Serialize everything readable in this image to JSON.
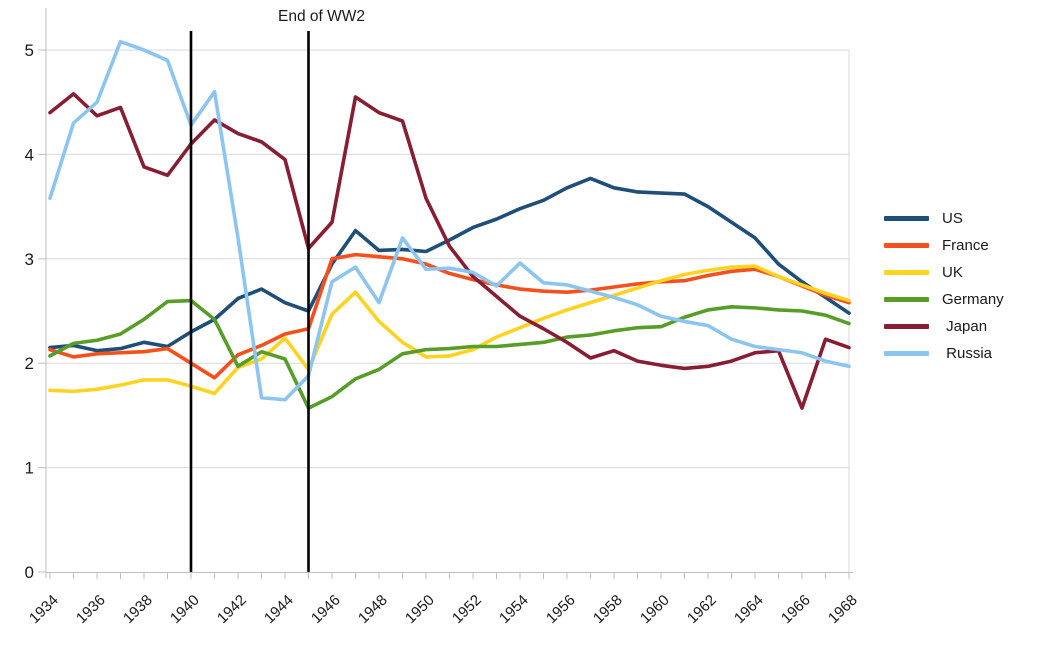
{
  "chart_data": {
    "type": "line",
    "title": "",
    "xlabel": "",
    "ylabel": "",
    "x": [
      1934,
      1935,
      1936,
      1937,
      1938,
      1939,
      1940,
      1941,
      1942,
      1943,
      1944,
      1945,
      1946,
      1947,
      1948,
      1949,
      1950,
      1951,
      1952,
      1953,
      1954,
      1955,
      1956,
      1957,
      1958,
      1959,
      1960,
      1961,
      1962,
      1963,
      1964,
      1965,
      1966,
      1967,
      1968
    ],
    "x_tick_label_step": 2,
    "ylim": [
      0,
      5
    ],
    "y_ticks": [
      0,
      1,
      2,
      3,
      4,
      5
    ],
    "grid": true,
    "legend_position": "right",
    "series": [
      {
        "name": "US",
        "color": "#1f4e79",
        "values": [
          2.15,
          2.17,
          2.12,
          2.14,
          2.2,
          2.16,
          2.3,
          2.42,
          2.62,
          2.71,
          2.58,
          2.5,
          2.95,
          3.27,
          3.08,
          3.09,
          3.07,
          3.18,
          3.3,
          3.38,
          3.48,
          3.56,
          3.68,
          3.77,
          3.68,
          3.64,
          3.63,
          3.62,
          3.5,
          3.35,
          3.2,
          2.95,
          2.78,
          2.63,
          2.48
        ]
      },
      {
        "name": "France",
        "color": "#f4501e",
        "values": [
          2.13,
          2.06,
          2.09,
          2.1,
          2.11,
          2.14,
          2.0,
          1.86,
          2.08,
          2.17,
          2.28,
          2.33,
          3.0,
          3.04,
          3.02,
          3.0,
          2.95,
          2.86,
          2.8,
          2.75,
          2.71,
          2.69,
          2.68,
          2.7,
          2.73,
          2.76,
          2.78,
          2.79,
          2.84,
          2.88,
          2.9,
          2.83,
          2.74,
          2.65,
          2.58
        ]
      },
      {
        "name": "UK",
        "color": "#ffd320",
        "values": [
          1.74,
          1.73,
          1.75,
          1.79,
          1.84,
          1.84,
          1.78,
          1.71,
          1.96,
          2.04,
          2.24,
          1.94,
          2.47,
          2.68,
          2.4,
          2.2,
          2.06,
          2.07,
          2.13,
          2.25,
          2.34,
          2.43,
          2.51,
          2.58,
          2.65,
          2.72,
          2.79,
          2.85,
          2.89,
          2.92,
          2.93,
          2.83,
          2.75,
          2.67,
          2.6
        ]
      },
      {
        "name": "Germany",
        "color": "#579d28",
        "values": [
          2.07,
          2.19,
          2.22,
          2.28,
          2.42,
          2.59,
          2.6,
          2.42,
          1.97,
          2.11,
          2.04,
          1.57,
          1.68,
          1.85,
          1.94,
          2.09,
          2.13,
          2.14,
          2.16,
          2.16,
          2.18,
          2.2,
          2.25,
          2.27,
          2.31,
          2.34,
          2.35,
          2.44,
          2.51,
          2.54,
          2.53,
          2.51,
          2.5,
          2.46,
          2.38
        ]
      },
      {
        "name": " Japan",
        "color": "#871e33",
        "values": [
          4.4,
          4.58,
          4.37,
          4.45,
          3.88,
          3.8,
          4.1,
          4.33,
          4.2,
          4.12,
          3.95,
          3.1,
          3.35,
          4.55,
          4.4,
          4.32,
          3.58,
          3.12,
          2.83,
          2.64,
          2.45,
          2.33,
          2.2,
          2.05,
          2.12,
          2.02,
          1.98,
          1.95,
          1.97,
          2.02,
          2.1,
          2.12,
          1.57,
          2.23,
          2.15
        ]
      },
      {
        "name": " Russia",
        "color": "#8cc5f0",
        "values": [
          3.58,
          4.3,
          4.5,
          5.08,
          5.0,
          4.9,
          4.28,
          4.6,
          3.2,
          1.67,
          1.65,
          1.88,
          2.78,
          2.92,
          2.58,
          3.2,
          2.9,
          2.91,
          2.87,
          2.74,
          2.96,
          2.77,
          2.75,
          2.69,
          2.63,
          2.56,
          2.45,
          2.4,
          2.36,
          2.23,
          2.16,
          2.13,
          2.1,
          2.02,
          1.97
        ]
      }
    ],
    "annotations": {
      "vlines": [
        {
          "x": 1940,
          "label": ""
        },
        {
          "x": 1945,
          "label": "End of WW2"
        }
      ]
    },
    "colors": {
      "gridline": "#d9d9d9",
      "axis": "#bfbfbf",
      "tick_text": "#1a1a1a",
      "annotation_line": "#000000",
      "background": "#ffffff"
    }
  }
}
